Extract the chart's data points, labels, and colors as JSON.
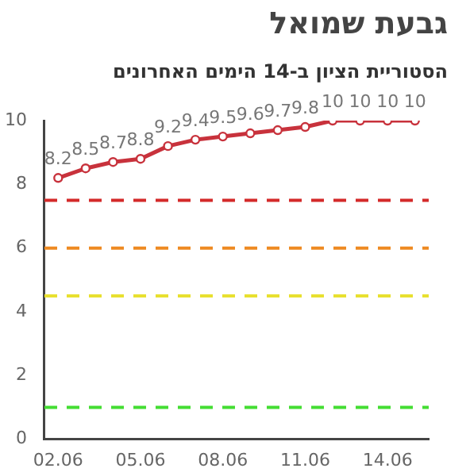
{
  "chart_data": {
    "type": "line",
    "title": "גבעת שמואל",
    "subtitle": "הסטוריית הציון ב-14 הימים האחרונים",
    "categories": [
      "02.06",
      null,
      null,
      "05.06",
      null,
      null,
      "08.06",
      null,
      null,
      "11.06",
      null,
      null,
      "14.06",
      null
    ],
    "series": [
      {
        "color": "#c8323c",
        "values": [
          8.2,
          8.5,
          8.7,
          8.8,
          9.2,
          9.4,
          9.5,
          9.6,
          9.7,
          9.8,
          10,
          10,
          10,
          10
        ]
      }
    ],
    "ylim": [
      0,
      10
    ],
    "yticks": [
      0,
      2,
      4,
      6,
      8,
      10
    ],
    "grid": false,
    "legend": false,
    "marker": "circle",
    "data_labels": true,
    "ref_lines": [
      {
        "axis": "y",
        "value": 7.5,
        "color": "#d42a2a",
        "line_style": "dashed"
      },
      {
        "axis": "y",
        "value": 6,
        "color": "#ee8a22",
        "line_style": "dashed"
      },
      {
        "axis": "y",
        "value": 4.5,
        "color": "#e8e030",
        "line_style": "dashed"
      },
      {
        "axis": "y",
        "value": 1,
        "color": "#44dd33",
        "line_style": "dashed"
      }
    ]
  }
}
